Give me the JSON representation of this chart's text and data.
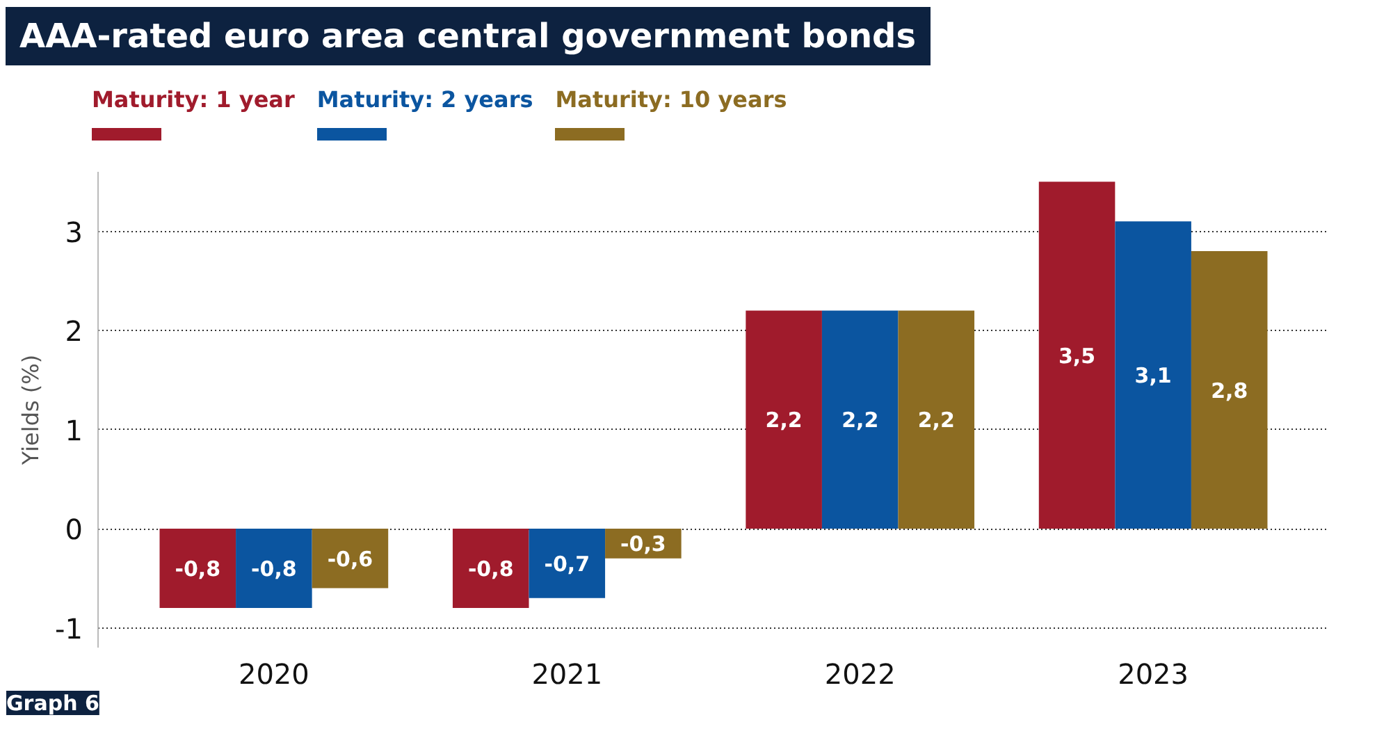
{
  "chart_data": {
    "type": "bar",
    "title": "AAA-rated euro area central government bonds",
    "ylabel": "Yields (%)",
    "categories": [
      "2020",
      "2021",
      "2022",
      "2023"
    ],
    "series": [
      {
        "name": "Maturity: 1 year",
        "color": "#a01b2c",
        "values": [
          -0.8,
          -0.8,
          2.2,
          3.5
        ],
        "value_labels": [
          "-0,8",
          "-0,8",
          "2,2",
          "3,5"
        ]
      },
      {
        "name": "Maturity: 2 years",
        "color": "#0b55a0",
        "values": [
          -0.8,
          -0.7,
          2.2,
          3.1
        ],
        "value_labels": [
          "-0,8",
          "-0,7",
          "2,2",
          "3,1"
        ]
      },
      {
        "name": "Maturity: 10 years",
        "color": "#8c6c22",
        "values": [
          -0.6,
          -0.3,
          2.2,
          2.8
        ],
        "value_labels": [
          "-0,6",
          "-0,3",
          "2,2",
          "2,8"
        ]
      }
    ],
    "ylim": [
      -1.2,
      3.6
    ],
    "yticks": [
      -1,
      0,
      1,
      2,
      3
    ],
    "grid": "y",
    "legend": "top left",
    "annotations": [
      "Graph 6"
    ]
  }
}
